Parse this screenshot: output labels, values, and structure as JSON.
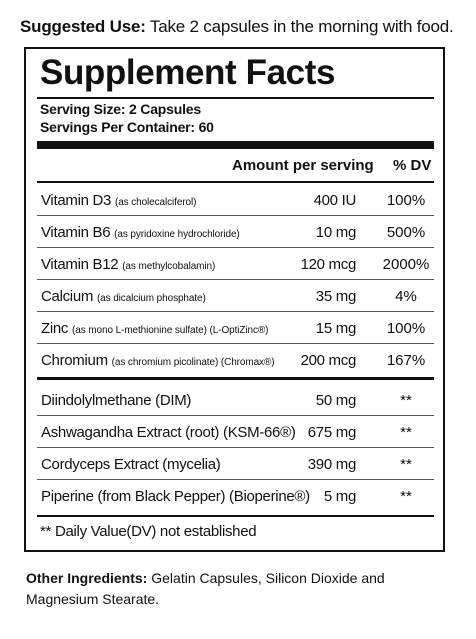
{
  "suggested_use": {
    "label": "Suggested Use:",
    "text": "Take 2 capsules in the morning with food."
  },
  "facts": {
    "title": "Supplement Facts",
    "serving_size": "Serving Size: 2 Capsules",
    "servings_per_container": "Servings Per Container: 60",
    "header_amount": "Amount per serving",
    "header_dv": "% DV",
    "vitamins": [
      {
        "name": "Vitamin D3",
        "note": "(as cholecalciferol)",
        "amount": "400 IU",
        "dv": "100%"
      },
      {
        "name": "Vitamin B6",
        "note": "(as pyridoxine hydrochloride)",
        "amount": "10 mg",
        "dv": "500%"
      },
      {
        "name": "Vitamin B12",
        "note": "(as methylcobalamin)",
        "amount": "120 mcg",
        "dv": "2000%"
      },
      {
        "name": "Calcium",
        "note": "(as dicalcium phosphate)",
        "amount": "35 mg",
        "dv": "4%"
      },
      {
        "name": "Zinc",
        "note": "(as mono L-methionine sulfate) (L-OptiZinc®)",
        "amount": "15 mg",
        "dv": "100%"
      },
      {
        "name": "Chromium",
        "note": "(as chromium picolinate) (Chromax®)",
        "amount": "200 mcg",
        "dv": "167%"
      }
    ],
    "others": [
      {
        "name": "Diindolylmethane (DIM)",
        "amount": "50 mg",
        "dv": "**"
      },
      {
        "name": "Ashwagandha Extract (root) (KSM-66®)",
        "amount": "675 mg",
        "dv": "**"
      },
      {
        "name": "Cordyceps Extract (mycelia)",
        "amount": "390 mg",
        "dv": "**"
      },
      {
        "name": "Piperine (from Black Pepper) (Bioperine®)",
        "amount": "5 mg",
        "dv": "**"
      }
    ],
    "footnote": "** Daily Value(DV) not established"
  },
  "other_ingredients": {
    "label": "Other Ingredients:",
    "text": "Gelatin Capsules, Silicon Dioxide and Magnesium Stearate."
  }
}
